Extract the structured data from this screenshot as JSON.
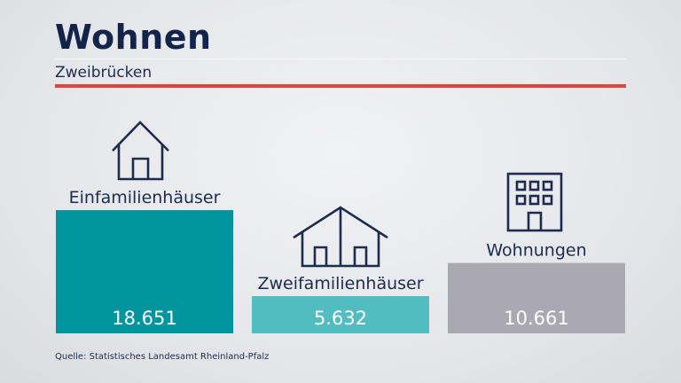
{
  "header": {
    "title": "Wohnen",
    "subtitle": "Zweibrücken"
  },
  "source": "Quelle: Statistisches Landesamt Rheinland-Pfalz",
  "colors": {
    "title": "#12244a",
    "accent_rule": "#e0443c",
    "bar_einfamilien": "#00959e",
    "bar_zweifamilien": "#52bcc1",
    "bar_wohnungen": "#a9a8b3"
  },
  "chart_data": {
    "type": "bar",
    "categories": [
      "Einfamilienhäuser",
      "Zweifamilienhäuser",
      "Wohnungen"
    ],
    "values": [
      18651,
      5632,
      10661
    ],
    "value_labels": [
      "18.651",
      "5.632",
      "10.661"
    ],
    "icons": [
      "single-family-house-icon",
      "two-family-house-icon",
      "apartment-building-icon"
    ],
    "title": "Wohnen",
    "subtitle": "Zweibrücken",
    "xlabel": "",
    "ylabel": "",
    "grid": false
  }
}
